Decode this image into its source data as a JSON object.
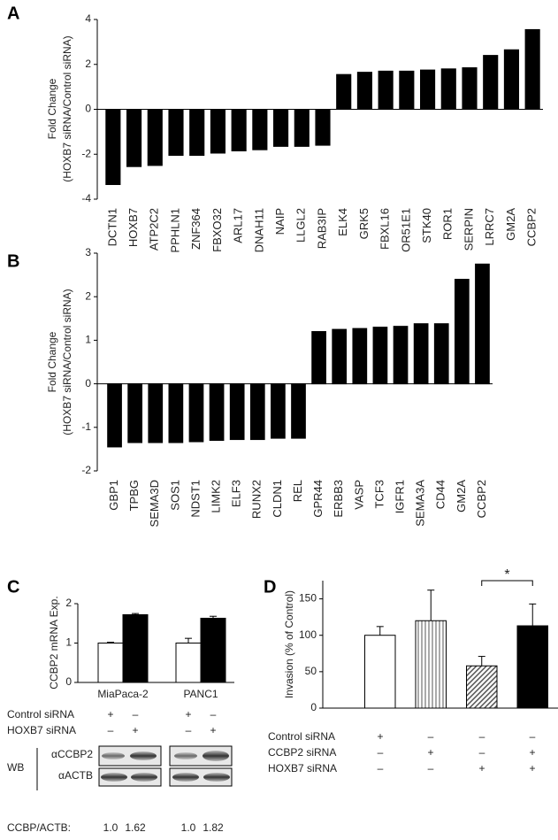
{
  "chart_data": [
    {
      "type": "bar",
      "panel": "A",
      "y_label": [
        "Fold Change",
        "(HOXB7 siRNA/Control siRNA)"
      ],
      "categories": [
        "DCTN1",
        "HOXB7",
        "ATP2C2",
        "PPHLN1",
        "ZNF364",
        "FBXO32",
        "ARL17",
        "DNAH11",
        "NAIP",
        "LLGL2",
        "RAB3IP",
        "ELK4",
        "GRK5",
        "FBXL16",
        "OR51E1",
        "STK40",
        "ROR1",
        "SERPIN",
        "LRRC7",
        "GM2A",
        "CCBP2"
      ],
      "values": [
        -3.35,
        -2.55,
        -2.5,
        -2.05,
        -2.05,
        -1.95,
        -1.85,
        -1.8,
        -1.65,
        -1.65,
        -1.6,
        1.55,
        1.65,
        1.7,
        1.7,
        1.75,
        1.8,
        1.85,
        2.4,
        2.65,
        3.55
      ],
      "color": "#000000",
      "ylim": [
        -4,
        4
      ],
      "yticks": [
        -4,
        -2,
        0,
        2,
        4
      ]
    },
    {
      "type": "bar",
      "panel": "B",
      "y_label": [
        "Fold Change",
        "(HOXB7 siRNA/Control siRNA)"
      ],
      "categories": [
        "GBP1",
        "TPBG",
        "SEMA3D",
        "SOS1",
        "NDST1",
        "LIMK2",
        "ELF3",
        "RUNX2",
        "CLDN1",
        "REL",
        "GPR44",
        "ERBB3",
        "VASP",
        "TCF3",
        "IGFR1",
        "SEMA3A",
        "CD44",
        "GM2A",
        "CCBP2"
      ],
      "values": [
        -1.45,
        -1.35,
        -1.35,
        -1.35,
        -1.33,
        -1.3,
        -1.28,
        -1.28,
        -1.25,
        -1.25,
        1.2,
        1.25,
        1.27,
        1.3,
        1.32,
        1.38,
        1.38,
        2.4,
        2.75
      ],
      "color": "#000000",
      "ylim": [
        -2,
        3
      ],
      "yticks": [
        -2,
        -1,
        0,
        1,
        2,
        3
      ]
    },
    {
      "type": "grouped_bar",
      "panel": "C",
      "y_label": "CCBP2 mRNA Exp.",
      "categories": [
        "MiaPaca-2",
        "PANC1"
      ],
      "series": [
        {
          "color": "#ffffff",
          "values": [
            1.0,
            1.0
          ],
          "errors": [
            0.02,
            0.12
          ]
        },
        {
          "color": "#000000",
          "values": [
            1.72,
            1.63
          ],
          "errors": [
            0.03,
            0.05
          ]
        }
      ],
      "ylim": [
        0,
        2
      ],
      "yticks": [
        0,
        1,
        2
      ],
      "conditions": [
        {
          "label": "Control siRNA",
          "signs": [
            "+",
            "–",
            "+",
            "–"
          ]
        },
        {
          "label": "HOXB7 siRNA",
          "signs": [
            "–",
            "+",
            "–",
            "+"
          ]
        }
      ],
      "western_blot": {
        "label": "WB",
        "antibodies": [
          "αCCBP2",
          "αACTB"
        ]
      },
      "ratio": {
        "label": "CCBP/ACTB:",
        "labels": [
          "1.0",
          "1.62",
          "1.0",
          "1.82"
        ]
      }
    },
    {
      "type": "bar",
      "panel": "D",
      "y_label": "Invasion (% of Control)",
      "values": [
        100,
        120,
        58,
        113
      ],
      "errors": [
        12,
        42,
        13,
        30
      ],
      "patterns": [
        "open",
        "vertical",
        "diagonal",
        "solid"
      ],
      "color": "#000000",
      "ylim": [
        0,
        175
      ],
      "yticks": [
        0,
        50,
        100,
        150
      ],
      "annotation": {
        "text": "*",
        "between": [
          2,
          3
        ]
      },
      "conditions": [
        {
          "label": "Control siRNA",
          "signs": [
            "+",
            "–",
            "–",
            "–"
          ]
        },
        {
          "label": "CCBP2 siRNA",
          "signs": [
            "–",
            "+",
            "–",
            "+"
          ]
        },
        {
          "label": "HOXB7 siRNA",
          "signs": [
            "–",
            "–",
            "+",
            "+"
          ]
        }
      ]
    }
  ]
}
